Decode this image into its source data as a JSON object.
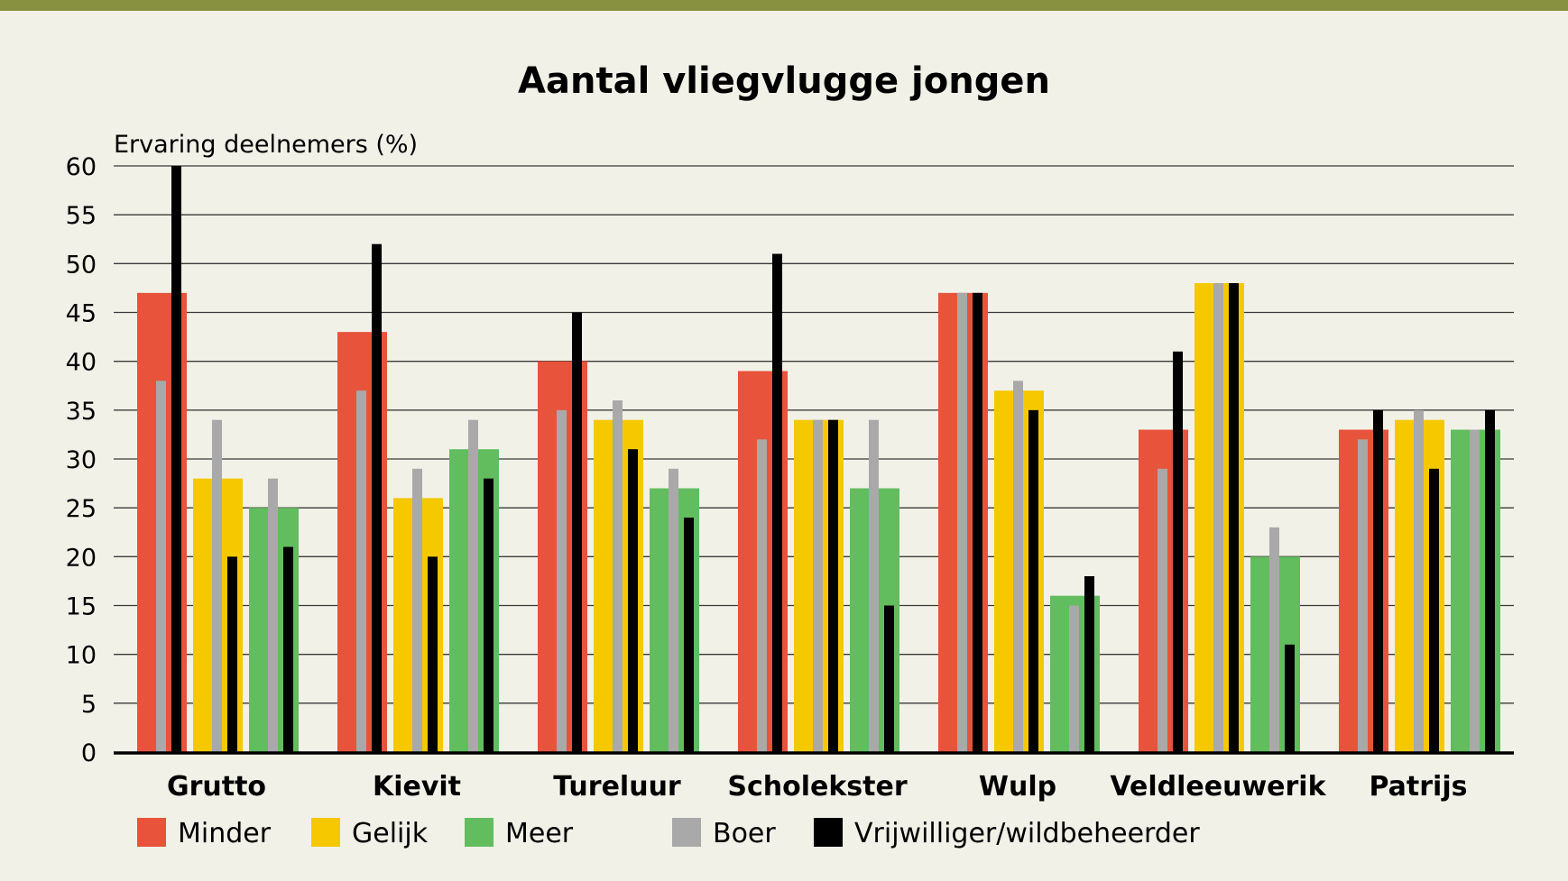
{
  "chart_data": {
    "type": "bar",
    "title": "Aantal vliegvlugge jongen",
    "xlabel": "",
    "ylabel": "Ervaring deelnemers (%)",
    "ylim": [
      0,
      60
    ],
    "yticks": [
      0,
      5,
      10,
      15,
      20,
      25,
      30,
      35,
      40,
      45,
      50,
      55,
      60
    ],
    "grid": true,
    "legend_position": "bottom",
    "categories": [
      "Grutto",
      "Kievit",
      "Tureluur",
      "Scholekster",
      "Wulp",
      "Veldleeuwerik",
      "Patrijs"
    ],
    "groups": [
      {
        "name": "Minder",
        "color": "#e8533b"
      },
      {
        "name": "Gelijk",
        "color": "#f5c800"
      },
      {
        "name": "Meer",
        "color": "#62bd5f"
      }
    ],
    "series": [
      {
        "name": "Minder",
        "color": "#e8533b",
        "values": [
          47,
          43,
          40,
          39,
          47,
          33,
          33
        ]
      },
      {
        "name": "Gelijk",
        "color": "#f5c800",
        "values": [
          28,
          26,
          34,
          34,
          37,
          48,
          34
        ]
      },
      {
        "name": "Meer",
        "color": "#62bd5f",
        "values": [
          25,
          31,
          27,
          27,
          16,
          20,
          33
        ]
      },
      {
        "name": "Boer - Minder",
        "color": "#a9a9a9",
        "values": [
          38,
          37,
          35,
          32,
          47,
          29,
          32
        ]
      },
      {
        "name": "Boer - Gelijk",
        "color": "#a9a9a9",
        "values": [
          34,
          29,
          36,
          34,
          38,
          48,
          35
        ]
      },
      {
        "name": "Boer - Meer",
        "color": "#a9a9a9",
        "values": [
          28,
          34,
          29,
          34,
          15,
          23,
          33
        ]
      },
      {
        "name": "Vrijwilliger/wildbeheerder - Minder",
        "color": "#000000",
        "values": [
          60,
          52,
          45,
          51,
          47,
          41,
          35
        ]
      },
      {
        "name": "Vrijwilliger/wildbeheerder - Gelijk",
        "color": "#000000",
        "values": [
          20,
          20,
          31,
          34,
          35,
          48,
          29
        ]
      },
      {
        "name": "Vrijwilliger/wildbeheerder - Meer",
        "color": "#000000",
        "values": [
          21,
          28,
          24,
          15,
          18,
          11,
          35
        ]
      }
    ],
    "legend": [
      {
        "label": "Minder",
        "color": "#e8533b"
      },
      {
        "label": "Gelijk",
        "color": "#f5c800"
      },
      {
        "label": "Meer",
        "color": "#62bd5f"
      },
      {
        "label": "Boer",
        "color": "#a9a9a9"
      },
      {
        "label": "Vrijwilliger/wildbeheerder",
        "color": "#000000"
      }
    ],
    "colors": {
      "background": "#f2f1e8",
      "top_bar": "#87913f",
      "gridline": "#3a3a3a",
      "axis": "#000000"
    }
  }
}
